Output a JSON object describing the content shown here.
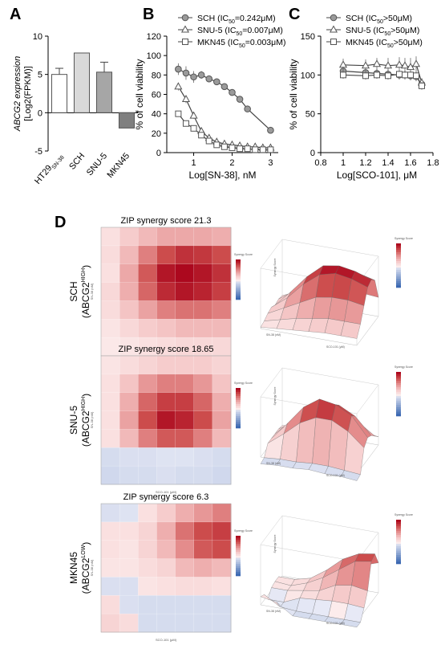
{
  "panel_letters": {
    "a": "A",
    "b": "B",
    "c": "C",
    "d": "D"
  },
  "chart_data": [
    {
      "id": "A",
      "type": "bar",
      "ylabel_line1": "ABCG2 expression",
      "ylabel_line2": "[Log2(FPKM)]",
      "categories": [
        "HT29SN-38",
        "SCH",
        "SNU-5",
        "MKN45"
      ],
      "tick_labels": [
        {
          "main": "HT29",
          "sub": "SN-38"
        },
        {
          "main": "SCH",
          "sub": ""
        },
        {
          "main": "SNU-5",
          "sub": ""
        },
        {
          "main": "MKN45",
          "sub": ""
        }
      ],
      "values": [
        5.0,
        7.8,
        5.3,
        -2.0
      ],
      "errors": [
        0.8,
        0,
        1.3,
        0
      ],
      "colors": [
        "#ffffff",
        "#d9d9d9",
        "#a6a6a6",
        "#7f7f7f"
      ],
      "ylim": [
        -5,
        10
      ],
      "yticks": [
        -5,
        0,
        5,
        10
      ]
    },
    {
      "id": "B",
      "type": "line",
      "xlabel": "Log[SN-38], nM",
      "ylabel": "% of cell viability",
      "xlim": [
        0.3,
        3.2
      ],
      "ylim": [
        0,
        120
      ],
      "xticks": [
        1,
        2,
        3
      ],
      "yticks": [
        0,
        20,
        40,
        60,
        80,
        100,
        120
      ],
      "series": [
        {
          "name": "SCH (IC50=0.242μM)",
          "legend_pre": "SCH (IC",
          "legend_sub": "50",
          "legend_post": "=0.242μM)",
          "marker": "circle",
          "fill": "#9a9a9a",
          "x": [
            0.6,
            0.8,
            1.0,
            1.2,
            1.4,
            1.6,
            1.8,
            2.0,
            2.2,
            2.4,
            3.0
          ],
          "y": [
            86,
            82,
            78,
            80,
            76,
            73,
            68,
            62,
            55,
            45,
            23
          ],
          "err": [
            6,
            7,
            6,
            4,
            3,
            3,
            3,
            3,
            3,
            3,
            2
          ]
        },
        {
          "name": "SNU-5 (IC50=0.007μM)",
          "legend_pre": "SNU-5 (IC",
          "legend_sub": "50",
          "legend_post": "=0.007μM)",
          "marker": "triangle",
          "fill": "#ffffff",
          "x": [
            0.6,
            0.8,
            1.0,
            1.2,
            1.4,
            1.6,
            1.8,
            2.0,
            2.2,
            2.4,
            2.6,
            2.8,
            3.0
          ],
          "y": [
            68,
            55,
            38,
            22,
            15,
            11,
            9,
            8,
            7,
            6,
            6,
            5,
            5
          ],
          "err": [
            4,
            4,
            3,
            3,
            2,
            2,
            2,
            2,
            2,
            2,
            2,
            2,
            2
          ]
        },
        {
          "name": "MKN45 (IC50=0.003μM)",
          "legend_pre": "MKN45 (IC",
          "legend_sub": "50",
          "legend_post": "=0.003μM)",
          "marker": "square",
          "fill": "#ffffff",
          "x": [
            0.6,
            0.8,
            1.0,
            1.2,
            1.4,
            1.6,
            1.8,
            2.0,
            2.2,
            2.4,
            2.6,
            2.8,
            3.0
          ],
          "y": [
            40,
            30,
            25,
            18,
            12,
            8,
            6,
            5,
            4,
            4,
            3,
            3,
            3
          ],
          "err": [
            3,
            3,
            3,
            2,
            2,
            2,
            2,
            2,
            2,
            2,
            2,
            2,
            2
          ]
        }
      ]
    },
    {
      "id": "C",
      "type": "line",
      "xlabel": "Log[SCO-101], μM",
      "ylabel": "% of cell viability",
      "xlim": [
        0.8,
        1.8
      ],
      "ylim": [
        0,
        150
      ],
      "xticks": [
        0.8,
        1.0,
        1.2,
        1.4,
        1.6,
        1.8
      ],
      "yticks": [
        0,
        50,
        100,
        150
      ],
      "series": [
        {
          "name": "SCH (IC50>50μM)",
          "legend_pre": "SCH (IC",
          "legend_sub": "50",
          "legend_post": ">50μM)",
          "marker": "circle",
          "fill": "#9a9a9a",
          "x": [
            1.0,
            1.2,
            1.3,
            1.4,
            1.5,
            1.55,
            1.6,
            1.65,
            1.7
          ],
          "y": [
            105,
            103,
            102,
            101,
            100,
            100,
            99,
            98,
            88
          ],
          "err": [
            6,
            6,
            6,
            6,
            6,
            6,
            6,
            6,
            6
          ]
        },
        {
          "name": "SNU-5 (IC50>50μM)",
          "legend_pre": "SNU-5 (IC",
          "legend_sub": "50",
          "legend_post": ">50μM)",
          "marker": "triangle",
          "fill": "#ffffff",
          "x": [
            1.0,
            1.2,
            1.3,
            1.4,
            1.5,
            1.55,
            1.6,
            1.65,
            1.7
          ],
          "y": [
            113,
            112,
            114,
            112,
            113,
            112,
            110,
            114,
            90
          ],
          "err": [
            8,
            8,
            8,
            10,
            10,
            10,
            12,
            10,
            6
          ]
        },
        {
          "name": "MKN45 (IC50>50μM)",
          "legend_pre": "MKN45 (IC",
          "legend_sub": "50",
          "legend_post": ">50μM)",
          "marker": "square",
          "fill": "#ffffff",
          "x": [
            1.0,
            1.2,
            1.3,
            1.4,
            1.5,
            1.55,
            1.6,
            1.65,
            1.7
          ],
          "y": [
            100,
            99,
            100,
            99,
            101,
            100,
            100,
            99,
            86
          ],
          "err": [
            5,
            5,
            5,
            5,
            5,
            5,
            5,
            5,
            5
          ]
        }
      ]
    },
    {
      "id": "D-SCH",
      "type": "heatmap",
      "title": "ZIP synergy score 21.3",
      "row_label": "SCH",
      "row_sub_pre": "(ABCG2",
      "row_sub_sup": "HIGH",
      "row_sub_post": ")",
      "score": 21.3,
      "xlabel": "SCO-101 (μM)",
      "ylabel": "SN-38 (nM)",
      "legend_title": "Synergy Score",
      "surface_zlabel": "Synergy Score",
      "grid": [
        [
          3,
          8,
          12,
          15,
          15,
          15,
          14
        ],
        [
          4,
          12,
          22,
          30,
          34,
          33,
          30
        ],
        [
          3,
          15,
          28,
          38,
          40,
          38,
          34
        ],
        [
          5,
          14,
          26,
          35,
          38,
          36,
          32
        ],
        [
          4,
          10,
          16,
          22,
          24,
          24,
          22
        ],
        [
          2,
          5,
          8,
          10,
          12,
          12,
          12
        ],
        [
          1,
          2,
          3,
          4,
          5,
          5,
          5
        ]
      ]
    },
    {
      "id": "D-SNU5",
      "type": "heatmap",
      "title": "ZIP synergy score 18.65",
      "row_label": "SNU-5",
      "row_sub_pre": "(ABCG2",
      "row_sub_sup": "HIGH",
      "row_sub_post": ")",
      "score": 18.65,
      "xlabel": "SCO-101 (μM)",
      "ylabel": "SN-38 (nM)",
      "legend_title": "Synergy Score",
      "surface_zlabel": "Synergy Score",
      "grid": [
        [
          2,
          4,
          6,
          8,
          8,
          8,
          6
        ],
        [
          3,
          10,
          18,
          22,
          22,
          18,
          10
        ],
        [
          3,
          14,
          26,
          32,
          32,
          26,
          14
        ],
        [
          3,
          16,
          30,
          38,
          36,
          30,
          16
        ],
        [
          3,
          12,
          22,
          28,
          28,
          22,
          12
        ],
        [
          -4,
          -3,
          -3,
          -2,
          -2,
          -3,
          -4
        ],
        [
          -5,
          -4,
          -4,
          -3,
          -4,
          -4,
          -5
        ]
      ]
    },
    {
      "id": "D-MKN45",
      "type": "heatmap",
      "title": "ZIP synergy score 6.3",
      "row_label": "MKN45",
      "row_sub_pre": "(ABCG2",
      "row_sub_sup": "LOW",
      "row_sub_post": ")",
      "score": 6.3,
      "xlabel": "SCO-101 (μM)",
      "ylabel": "SN-38 (nM)",
      "legend_title": "Synergy Score",
      "surface_zlabel": "Synergy Score",
      "grid": [
        [
          -3,
          -2,
          3,
          8,
          14,
          18,
          22
        ],
        [
          3,
          3,
          6,
          14,
          24,
          30,
          32
        ],
        [
          3,
          2,
          6,
          12,
          20,
          28,
          30
        ],
        [
          2,
          2,
          4,
          6,
          12,
          14,
          12
        ],
        [
          -3,
          -3,
          2,
          3,
          4,
          4,
          3
        ],
        [
          4,
          -3,
          -4,
          -4,
          -4,
          -4,
          -4
        ],
        [
          6,
          4,
          -4,
          -4,
          -4,
          -4,
          -4
        ]
      ]
    }
  ]
}
